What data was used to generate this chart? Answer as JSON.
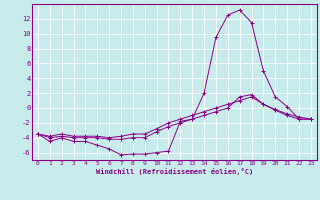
{
  "xlabel": "Windchill (Refroidissement éolien,°C)",
  "xlim": [
    -0.5,
    23.5
  ],
  "ylim": [
    -7,
    14
  ],
  "yticks": [
    -6,
    -4,
    -2,
    0,
    2,
    4,
    6,
    8,
    10,
    12
  ],
  "xticks": [
    0,
    1,
    2,
    3,
    4,
    5,
    6,
    7,
    8,
    9,
    10,
    11,
    12,
    13,
    14,
    15,
    16,
    17,
    18,
    19,
    20,
    21,
    22,
    23
  ],
  "bg_color": "#c8ecec",
  "line_color": "#880088",
  "grid_color": "#ffffff",
  "line1_x": [
    0,
    1,
    2,
    3,
    4,
    5,
    6,
    7,
    8,
    9,
    10,
    11,
    12,
    13,
    14,
    15,
    16,
    17,
    18,
    19,
    20,
    21,
    22,
    23
  ],
  "line1_y": [
    -3.5,
    -4.5,
    -4.0,
    -4.5,
    -4.5,
    -5.0,
    -5.5,
    -6.3,
    -6.2,
    -6.2,
    -6.0,
    -5.8,
    -1.8,
    -1.5,
    2.0,
    9.5,
    12.5,
    13.2,
    11.5,
    5.0,
    1.5,
    0.2,
    -1.5,
    -1.5
  ],
  "line2_x": [
    0,
    1,
    2,
    3,
    4,
    5,
    6,
    7,
    8,
    9,
    10,
    11,
    12,
    13,
    14,
    15,
    16,
    17,
    18,
    19,
    20,
    21,
    22,
    23
  ],
  "line2_y": [
    -3.5,
    -4.0,
    -3.8,
    -4.0,
    -4.0,
    -4.0,
    -4.2,
    -4.2,
    -4.0,
    -4.0,
    -3.2,
    -2.5,
    -2.0,
    -1.5,
    -1.0,
    -0.5,
    0.0,
    1.5,
    1.8,
    0.5,
    -0.3,
    -1.0,
    -1.5,
    -1.5
  ],
  "line3_x": [
    0,
    1,
    2,
    3,
    4,
    5,
    6,
    7,
    8,
    9,
    10,
    11,
    12,
    13,
    14,
    15,
    16,
    17,
    18,
    19,
    20,
    21,
    22,
    23
  ],
  "line3_y": [
    -3.5,
    -3.8,
    -3.5,
    -3.8,
    -3.8,
    -3.8,
    -4.0,
    -3.8,
    -3.5,
    -3.5,
    -2.8,
    -2.0,
    -1.5,
    -1.0,
    -0.5,
    0.0,
    0.5,
    1.0,
    1.5,
    0.5,
    -0.2,
    -0.8,
    -1.2,
    -1.5
  ]
}
